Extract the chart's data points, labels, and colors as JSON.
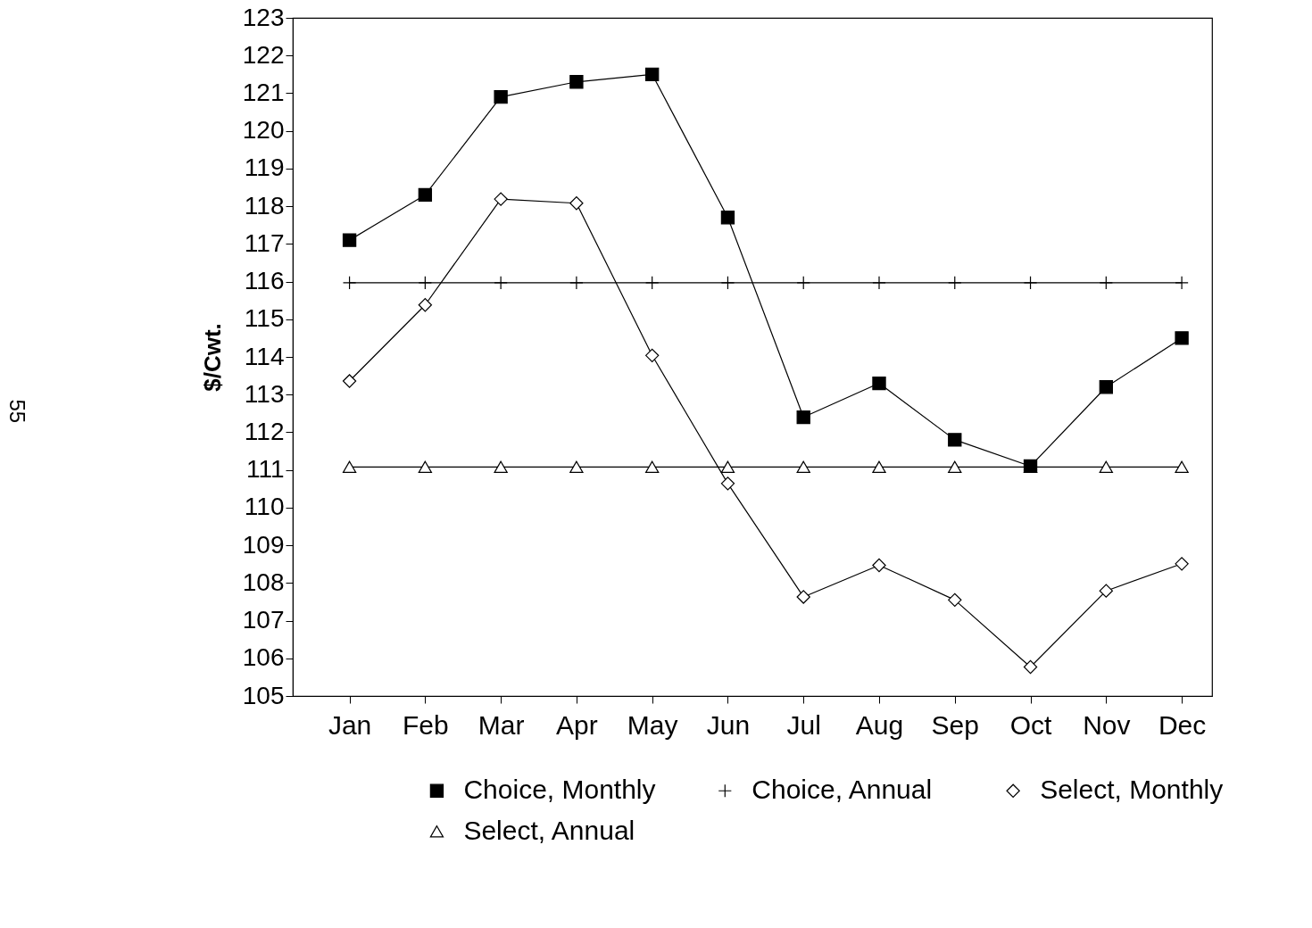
{
  "chart_data": {
    "type": "line",
    "ylabel": "$/Cwt.",
    "categories": [
      "Jan",
      "Feb",
      "Mar",
      "Apr",
      "May",
      "Jun",
      "Jul",
      "Aug",
      "Sep",
      "Oct",
      "Nov",
      "Dec"
    ],
    "ylim": [
      105,
      123
    ],
    "yticks": [
      105,
      106,
      107,
      108,
      109,
      110,
      111,
      112,
      113,
      114,
      115,
      116,
      117,
      118,
      119,
      120,
      121,
      122,
      123
    ],
    "grid": false,
    "legend": "bottom",
    "series": [
      {
        "name": "Choice, Monthly",
        "color": "#000000",
        "marker": "square",
        "values": [
          117.1,
          118.3,
          120.9,
          121.3,
          121.5,
          117.7,
          112.4,
          113.3,
          111.8,
          111.1,
          113.2,
          114.5
        ]
      },
      {
        "name": "Choice, Annual",
        "color": "#000000",
        "marker": "cross",
        "values": [
          115.97,
          115.97,
          115.97,
          115.97,
          115.97,
          115.97,
          115.97,
          115.97,
          115.97,
          115.97,
          115.97,
          115.97
        ]
      },
      {
        "name": "Select, Monthly",
        "color": "#000000",
        "marker": "diamond",
        "values": [
          113.36,
          115.38,
          118.19,
          118.08,
          114.04,
          110.64,
          107.63,
          108.47,
          107.55,
          105.77,
          107.79,
          108.51
        ]
      },
      {
        "name": "Select, Annual",
        "color": "#000000",
        "marker": "triangle",
        "values": [
          111.08,
          111.08,
          111.08,
          111.08,
          111.08,
          111.08,
          111.08,
          111.08,
          111.08,
          111.08,
          111.08,
          111.08
        ]
      }
    ],
    "annotations": [
      "55"
    ]
  }
}
